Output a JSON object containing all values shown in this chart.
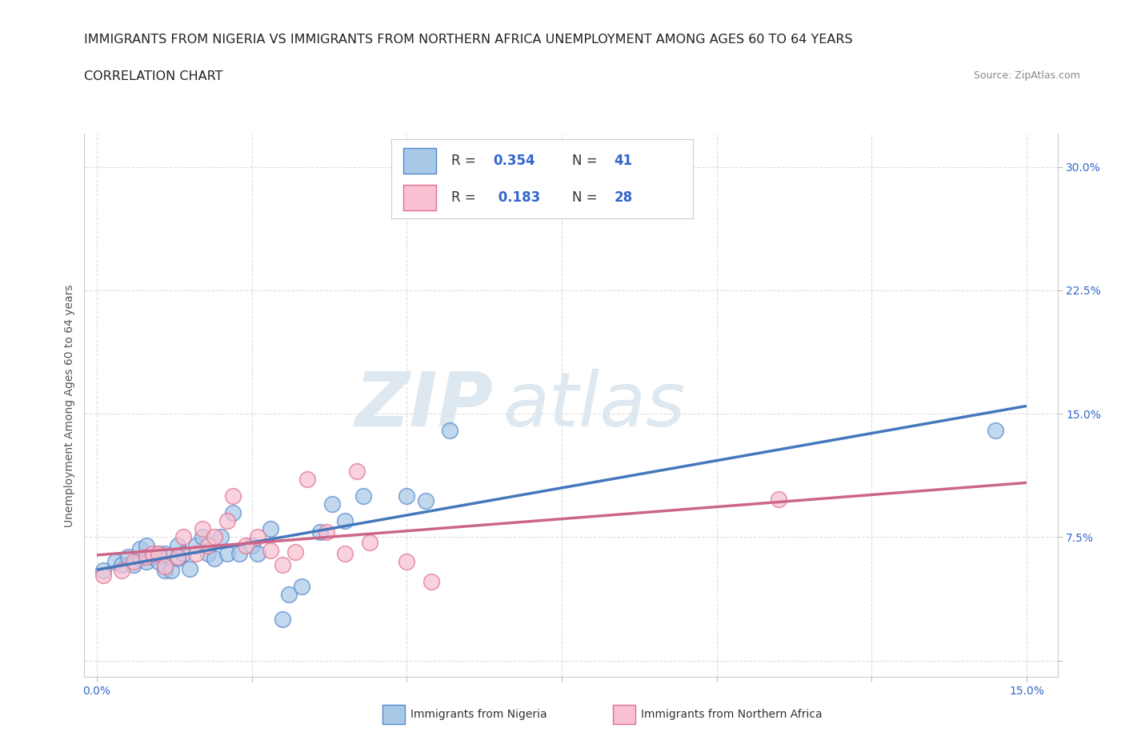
{
  "title_line1": "IMMIGRANTS FROM NIGERIA VS IMMIGRANTS FROM NORTHERN AFRICA UNEMPLOYMENT AMONG AGES 60 TO 64 YEARS",
  "title_line2": "CORRELATION CHART",
  "source_text": "Source: ZipAtlas.com",
  "ylabel": "Unemployment Among Ages 60 to 64 years",
  "xlim": [
    -0.002,
    0.155
  ],
  "ylim": [
    -0.01,
    0.32
  ],
  "xticks": [
    0.0,
    0.025,
    0.05,
    0.075,
    0.1,
    0.125,
    0.15
  ],
  "xticklabels": [
    "0.0%",
    "",
    "",
    "",
    "",
    "",
    "15.0%"
  ],
  "yticks": [
    0.0,
    0.075,
    0.15,
    0.225,
    0.3
  ],
  "yticklabels": [
    "",
    "7.5%",
    "15.0%",
    "22.5%",
    "30.0%"
  ],
  "nigeria_color": "#a8c8e8",
  "nigeria_edge": "#5588cc",
  "n_africa_color": "#f8c0d0",
  "n_africa_edge": "#e07090",
  "nigeria_line_color": "#4477bb",
  "n_africa_line_color": "#cc6688",
  "nigeria_R": 0.354,
  "nigeria_N": 41,
  "n_africa_R": 0.183,
  "n_africa_N": 28,
  "watermark_zip": "ZIP",
  "watermark_atlas": "atlas",
  "nigeria_x": [
    0.001,
    0.003,
    0.004,
    0.005,
    0.006,
    0.007,
    0.007,
    0.008,
    0.008,
    0.009,
    0.01,
    0.01,
    0.011,
    0.011,
    0.012,
    0.013,
    0.013,
    0.014,
    0.015,
    0.016,
    0.017,
    0.018,
    0.019,
    0.02,
    0.021,
    0.022,
    0.023,
    0.025,
    0.026,
    0.028,
    0.03,
    0.031,
    0.033,
    0.036,
    0.038,
    0.04,
    0.043,
    0.05,
    0.053,
    0.057,
    0.145
  ],
  "nigeria_y": [
    0.055,
    0.06,
    0.058,
    0.063,
    0.058,
    0.062,
    0.068,
    0.06,
    0.07,
    0.063,
    0.06,
    0.065,
    0.055,
    0.065,
    0.055,
    0.062,
    0.07,
    0.065,
    0.056,
    0.07,
    0.075,
    0.065,
    0.062,
    0.075,
    0.065,
    0.09,
    0.065,
    0.07,
    0.065,
    0.08,
    0.025,
    0.04,
    0.045,
    0.078,
    0.095,
    0.085,
    0.1,
    0.1,
    0.097,
    0.14,
    0.14
  ],
  "n_africa_x": [
    0.001,
    0.004,
    0.006,
    0.008,
    0.009,
    0.01,
    0.011,
    0.013,
    0.014,
    0.016,
    0.017,
    0.018,
    0.019,
    0.021,
    0.022,
    0.024,
    0.026,
    0.028,
    0.03,
    0.032,
    0.034,
    0.037,
    0.04,
    0.042,
    0.044,
    0.05,
    0.054,
    0.11
  ],
  "n_africa_y": [
    0.052,
    0.055,
    0.06,
    0.063,
    0.065,
    0.065,
    0.057,
    0.063,
    0.075,
    0.065,
    0.08,
    0.07,
    0.075,
    0.085,
    0.1,
    0.07,
    0.075,
    0.067,
    0.058,
    0.066,
    0.11,
    0.078,
    0.065,
    0.115,
    0.072,
    0.06,
    0.048,
    0.098
  ],
  "background_color": "#ffffff",
  "grid_color": "#dddddd",
  "title_fontsize": 11.5,
  "axis_label_fontsize": 10,
  "tick_fontsize": 10,
  "legend_fontsize": 12
}
